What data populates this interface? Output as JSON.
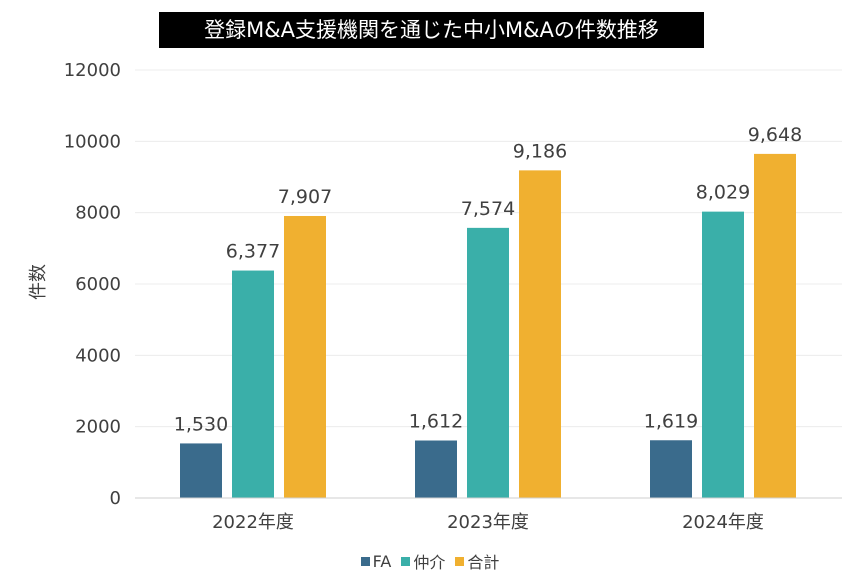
{
  "chart_data": {
    "type": "bar",
    "title": "登録M&A支援機関を通じた中小M&Aの件数推移",
    "xlabel": "",
    "ylabel": "件数",
    "categories": [
      "2022年度",
      "2023年度",
      "2024年度"
    ],
    "series": [
      {
        "name": "FA",
        "values": [
          1530,
          1612,
          1619
        ],
        "labels": [
          "1,530",
          "1,612",
          "1,619"
        ],
        "color": "#3a6b8c"
      },
      {
        "name": "仲介",
        "values": [
          6377,
          7574,
          8029
        ],
        "labels": [
          "6,377",
          "7,574",
          "8,029"
        ],
        "color": "#3aafa9"
      },
      {
        "name": "合計",
        "values": [
          7907,
          9186,
          9648
        ],
        "labels": [
          "7,907",
          "9,186",
          "9,648"
        ],
        "color": "#f0b030"
      }
    ],
    "ylim": [
      0,
      12000
    ],
    "yticks": [
      "0",
      "2000",
      "4000",
      "6000",
      "8000",
      "10000",
      "12000"
    ],
    "grid": true,
    "legend_position": "bottom"
  }
}
